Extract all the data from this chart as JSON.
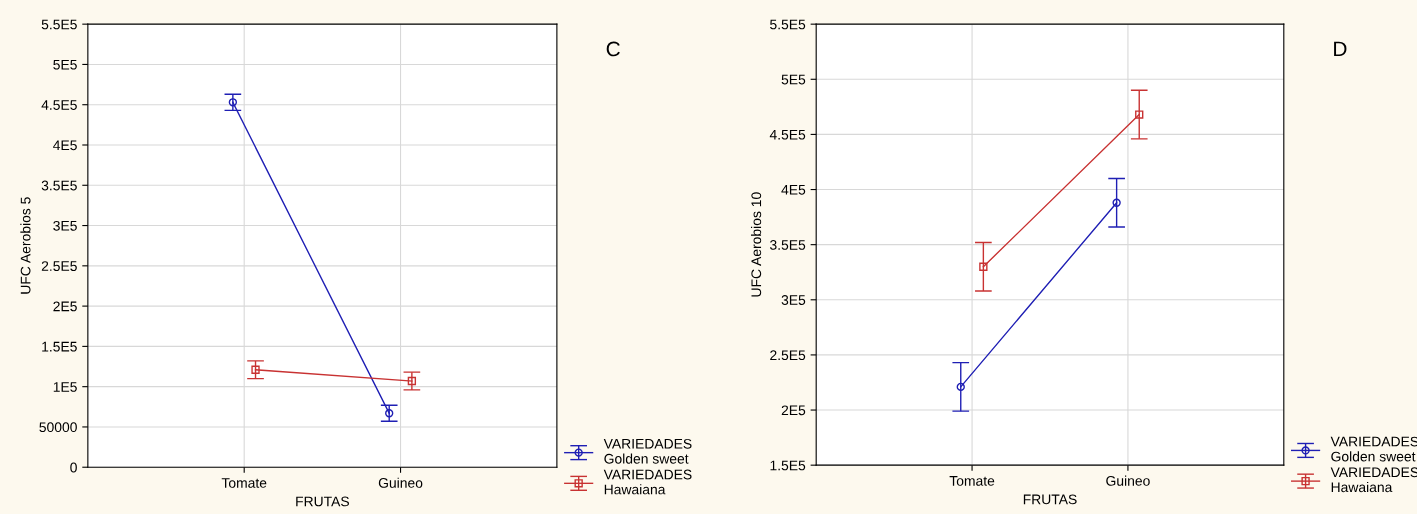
{
  "chart_data": [
    {
      "type": "line",
      "xlabel": "FRUTAS",
      "ylabel": "UFC Aerobios 5",
      "categories": [
        "Tomate",
        "Guineo"
      ],
      "series": [
        {
          "name": "VARIEDADES\nGolden sweet",
          "color": "#1f1fb4",
          "marker": "circle",
          "values": [
            453000,
            67000
          ],
          "errors": [
            10000,
            10000
          ]
        },
        {
          "name": "VARIEDADES\nHawaiana",
          "color": "#c83232",
          "marker": "square",
          "values": [
            121000,
            107000
          ],
          "errors": [
            11000,
            11000
          ]
        }
      ],
      "ylim": [
        0,
        550000
      ],
      "yticks": [
        0,
        50000,
        {
          "value": 100000,
          "label": "1E5"
        },
        {
          "value": 150000,
          "label": "1.5E5"
        },
        {
          "value": 200000,
          "label": "2E5"
        },
        {
          "value": 250000,
          "label": "2.5E5"
        },
        {
          "value": 300000,
          "label": "3E5"
        },
        {
          "value": 350000,
          "label": "3.5E5"
        },
        {
          "value": 400000,
          "label": "4E5"
        },
        {
          "value": 450000,
          "label": "4.5E5"
        },
        {
          "value": 500000,
          "label": "5E5"
        },
        {
          "value": 550000,
          "label": "5.5E5"
        }
      ],
      "grid": true,
      "legend": "bottom right",
      "line_style": "solid",
      "annotations": [
        "C"
      ]
    },
    {
      "type": "line",
      "xlabel": "FRUTAS",
      "ylabel": "UFC Aerobios 10",
      "categories": [
        "Tomate",
        "Guineo"
      ],
      "series": [
        {
          "name": "VARIEDADES\nGolden sweet",
          "color": "#1f1fb4",
          "marker": "circle",
          "values": [
            221000,
            388000
          ],
          "errors": [
            22000,
            22000
          ]
        },
        {
          "name": "VARIEDADES\nHawaiana",
          "color": "#c83232",
          "marker": "square",
          "values": [
            330000,
            468000
          ],
          "errors": [
            22000,
            22000
          ]
        }
      ],
      "ylim": [
        150000,
        550000
      ],
      "yticks": [
        {
          "value": 150000,
          "label": "1.5E5"
        },
        {
          "value": 200000,
          "label": "2E5"
        },
        {
          "value": 250000,
          "label": "2.5E5"
        },
        {
          "value": 300000,
          "label": "3E5"
        },
        {
          "value": 350000,
          "label": "3.5E5"
        },
        {
          "value": 400000,
          "label": "4E5"
        },
        {
          "value": 450000,
          "label": "4.5E5"
        },
        {
          "value": 500000,
          "label": "5E5"
        },
        {
          "value": 550000,
          "label": "5.5E5"
        }
      ],
      "grid": true,
      "legend": "bottom right",
      "line_style": "solid",
      "annotations": [
        "D"
      ]
    }
  ]
}
